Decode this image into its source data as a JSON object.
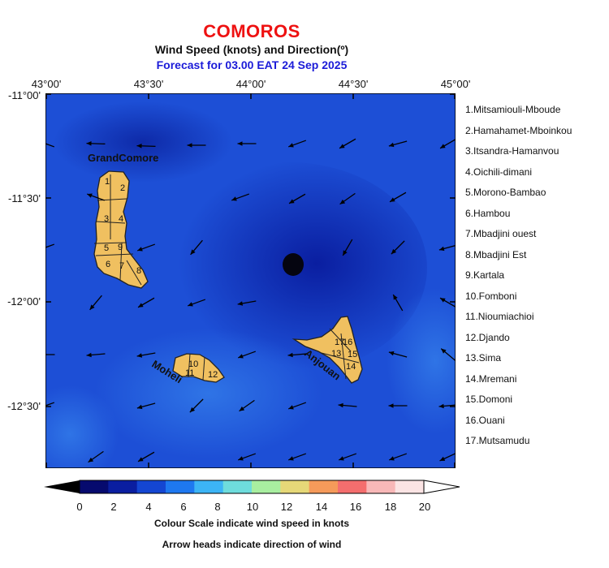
{
  "header": {
    "title": "COMOROS",
    "subtitle": "Wind Speed (knots) and Direction(º)",
    "forecast": "Forecast for  03.00 EAT 24 Sep 2025"
  },
  "axes": {
    "lon_labels": [
      "43°00'",
      "43°30'",
      "44°00'",
      "44°30'",
      "45°00'"
    ],
    "lat_labels": [
      "-11°00'",
      "-11°30'",
      "-12°00'",
      "-12°30'"
    ]
  },
  "map_labels": {
    "grandcomore": "GrandComore",
    "moheli": "Moheli",
    "anjouan": "Anjouan"
  },
  "regions": [
    "1.Mitsamiouli-Mboude",
    "2.Hamahamet-Mboinkou",
    "3.Itsandra-Hamanvou",
    "4.Oichili-dimani",
    "5.Morono-Bambao",
    "6.Hambou",
    "7.Mbadjini ouest",
    "8.Mbadjini Est",
    "9.Kartala",
    "10.Fomboni",
    "11.Nioumiachioi",
    "12.Djando",
    "13.Sima",
    "14.Mremani",
    "15.Domoni",
    "16.Ouani",
    "17.Mutsamudu"
  ],
  "colorbar": {
    "ticks": [
      "0",
      "2",
      "4",
      "6",
      "8",
      "10",
      "12",
      "14",
      "16",
      "18",
      "20"
    ],
    "colors": [
      "#060a6e",
      "#0a1ea0",
      "#1446d2",
      "#1e78f0",
      "#3cb4f5",
      "#6edcdc",
      "#a8eea0",
      "#e6d878",
      "#f59a5a",
      "#f46e6e",
      "#f8b8b8",
      "#fbe4e4"
    ],
    "under_color": "#000000",
    "over_color": "#ffffff"
  },
  "footer": {
    "line1": "Colour Scale indicate wind speed in knots",
    "line2": "Arrow heads indicate direction of wind"
  }
}
